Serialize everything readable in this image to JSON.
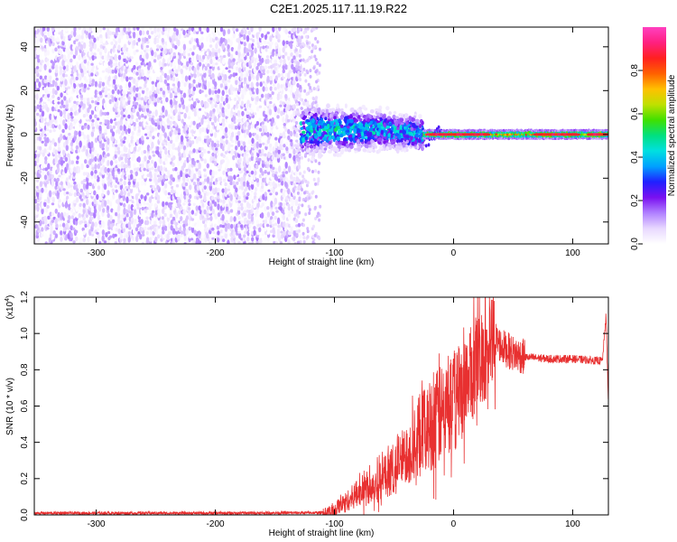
{
  "title": "C2E1.2025.117.11.19.R22",
  "colors": {
    "snr_line": "#e83030",
    "scatter_purple": "#7a10f0",
    "background": "#ffffff"
  },
  "chart_data": [
    {
      "type": "heatmap",
      "title": "C2E1.2025.117.11.19.R22",
      "xlabel": "Height of straight line (km)",
      "ylabel": "Frequency (Hz)",
      "xlim": [
        -352,
        130
      ],
      "ylim": [
        -50,
        49
      ],
      "xticks": [
        -300,
        -200,
        -100,
        0,
        100
      ],
      "yticks": [
        -40,
        -20,
        0,
        20,
        40
      ],
      "grid": false,
      "colorbar": {
        "label": "Normalized spectral amplitude",
        "range": [
          0.0,
          1.0
        ],
        "ticks": [
          "0.0",
          "0.2",
          "0.4",
          "0.6",
          "0.8"
        ],
        "colormap": [
          "#ffffff",
          "#e8d8ff",
          "#b080ff",
          "#7a10f0",
          "#2020ff",
          "#00a0ff",
          "#00e0e0",
          "#00e080",
          "#40e000",
          "#c0e000",
          "#ffc000",
          "#ff6000",
          "#ff2020",
          "#ff2080",
          "#ff40c0"
        ]
      },
      "regions": [
        {
          "x_range": [
            -352,
            -128
          ],
          "freq_range": [
            -50,
            49
          ],
          "amplitude": [
            0.0,
            0.15
          ],
          "description": "broadband noise"
        },
        {
          "x_range": [
            -128,
            -25
          ],
          "freq_center": 2,
          "freq_spread": 12,
          "amplitude": [
            0.15,
            0.4
          ]
        },
        {
          "x_range": [
            -25,
            130
          ],
          "freq_center": 0,
          "freq_spread": 2,
          "amplitude": [
            0.5,
            0.9
          ]
        }
      ]
    },
    {
      "type": "line",
      "xlabel": "Height of straight line (km)",
      "ylabel": "SNR (10 * v/v)",
      "y_multiplier": "(x10",
      "y_multiplier_exp": "4",
      "xlim": [
        -352,
        130
      ],
      "ylim": [
        0,
        1.2
      ],
      "xticks": [
        -300,
        -200,
        -100,
        0,
        100
      ],
      "yticks": [
        "0.0",
        "0.2",
        "0.4",
        "0.6",
        "0.8",
        "1.0",
        "1.2"
      ],
      "grid": false,
      "series": [
        {
          "x": [
            -352,
            -200,
            -110,
            -100,
            -90,
            -80,
            -70,
            -60,
            -50,
            -40,
            -30,
            -20,
            -10,
            0,
            10,
            20,
            30,
            35,
            40,
            50,
            60,
            80,
            100,
            120,
            125,
            128,
            130
          ],
          "y": [
            0.01,
            0.01,
            0.012,
            0.03,
            0.08,
            0.13,
            0.17,
            0.21,
            0.27,
            0.35,
            0.45,
            0.52,
            0.58,
            0.65,
            0.75,
            0.88,
            0.95,
            0.97,
            0.93,
            0.89,
            0.87,
            0.86,
            0.86,
            0.85,
            0.85,
            1.1,
            0.6
          ]
        }
      ]
    }
  ]
}
